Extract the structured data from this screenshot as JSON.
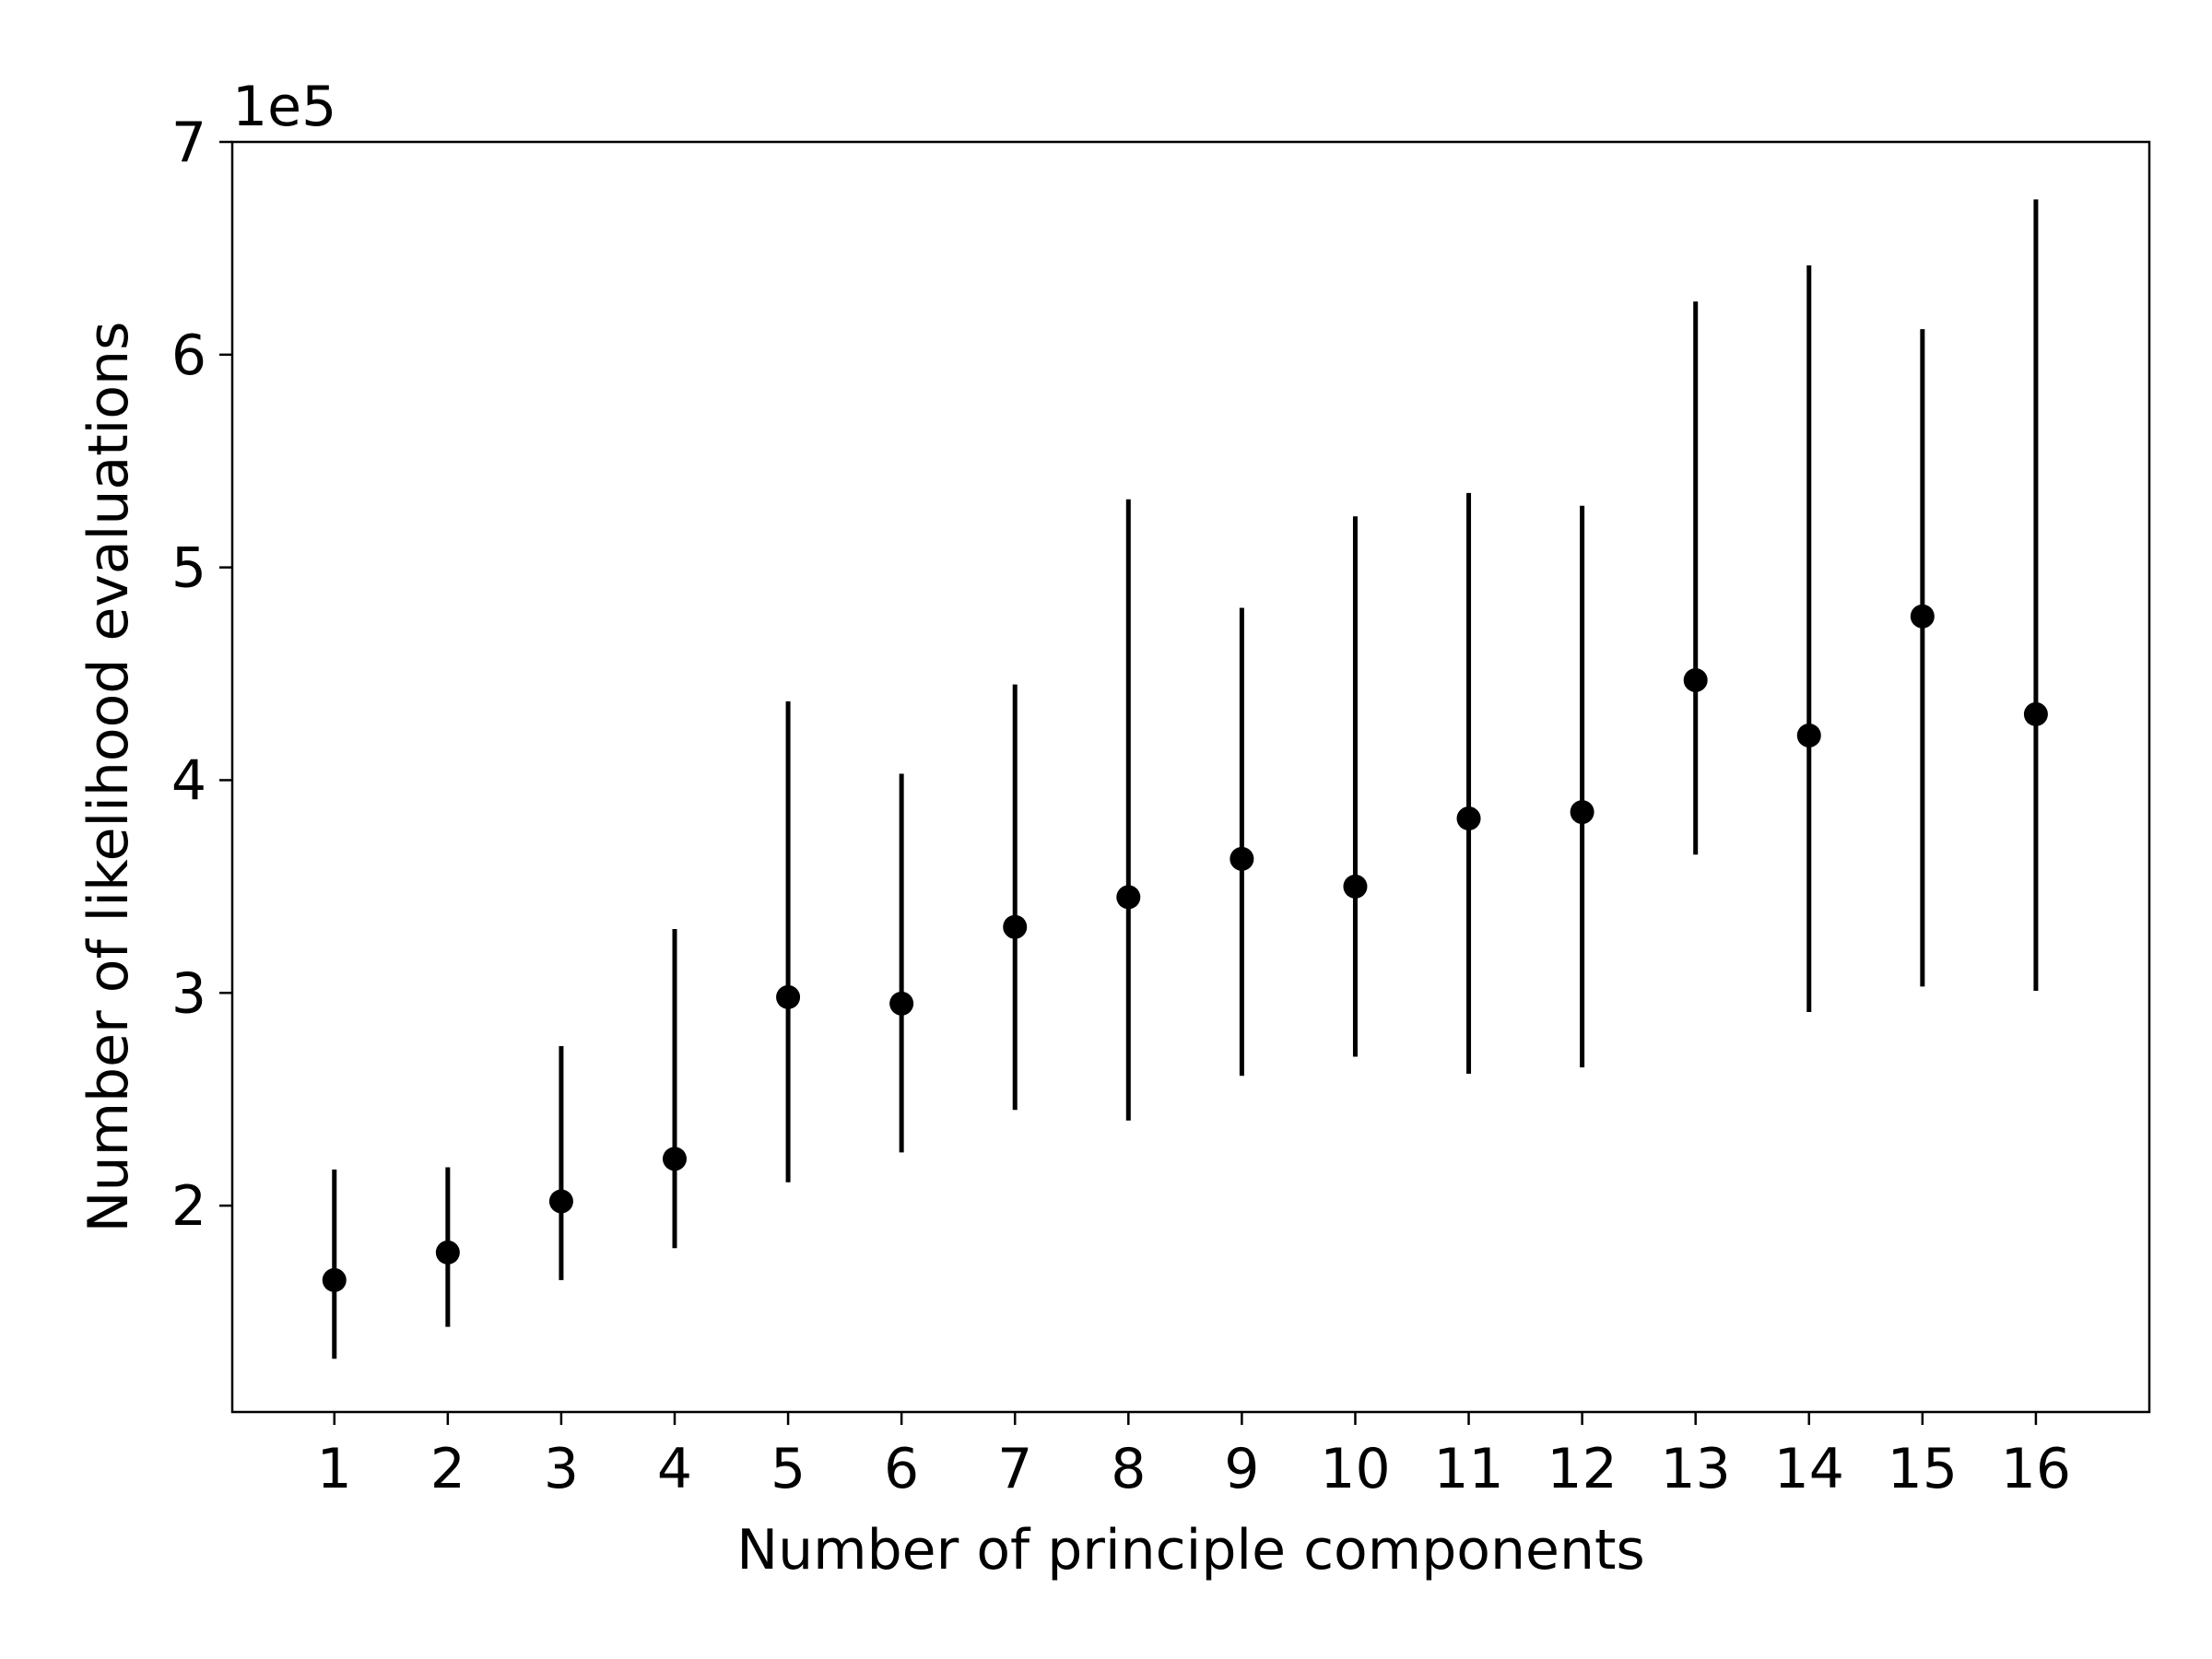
{
  "chart_data": {
    "type": "scatter",
    "title": "",
    "xlabel": "Number of principle components",
    "ylabel": "Number of likelihood evaluations",
    "y_offset_label": "1e5",
    "y_scale_factor": 100000,
    "x_ticks": [
      1,
      2,
      3,
      4,
      5,
      6,
      7,
      8,
      9,
      10,
      11,
      12,
      13,
      14,
      15,
      16
    ],
    "y_ticks": [
      2,
      3,
      4,
      5,
      6,
      7
    ],
    "xlim": [
      0.1,
      17.0
    ],
    "ylim": [
      1.03,
      7.0
    ],
    "grid": false,
    "series": [
      {
        "marker_color": "#000000",
        "x": [
          1,
          2,
          3,
          4,
          5,
          6,
          7,
          8,
          9,
          10,
          11,
          12,
          13,
          14,
          15,
          16
        ],
        "y": [
          1.65,
          1.78,
          2.02,
          2.22,
          2.98,
          2.95,
          3.31,
          3.45,
          3.63,
          3.5,
          3.82,
          3.85,
          4.47,
          4.21,
          4.77,
          4.31
        ],
        "y_low": [
          1.28,
          1.43,
          1.65,
          1.8,
          2.11,
          2.25,
          2.45,
          2.4,
          2.61,
          2.7,
          2.62,
          2.65,
          3.65,
          2.91,
          3.03,
          3.01
        ],
        "y_high": [
          2.17,
          2.18,
          2.75,
          3.3,
          4.37,
          4.03,
          4.45,
          5.32,
          4.81,
          5.24,
          5.35,
          5.29,
          6.25,
          6.42,
          6.12,
          6.73
        ]
      }
    ]
  }
}
